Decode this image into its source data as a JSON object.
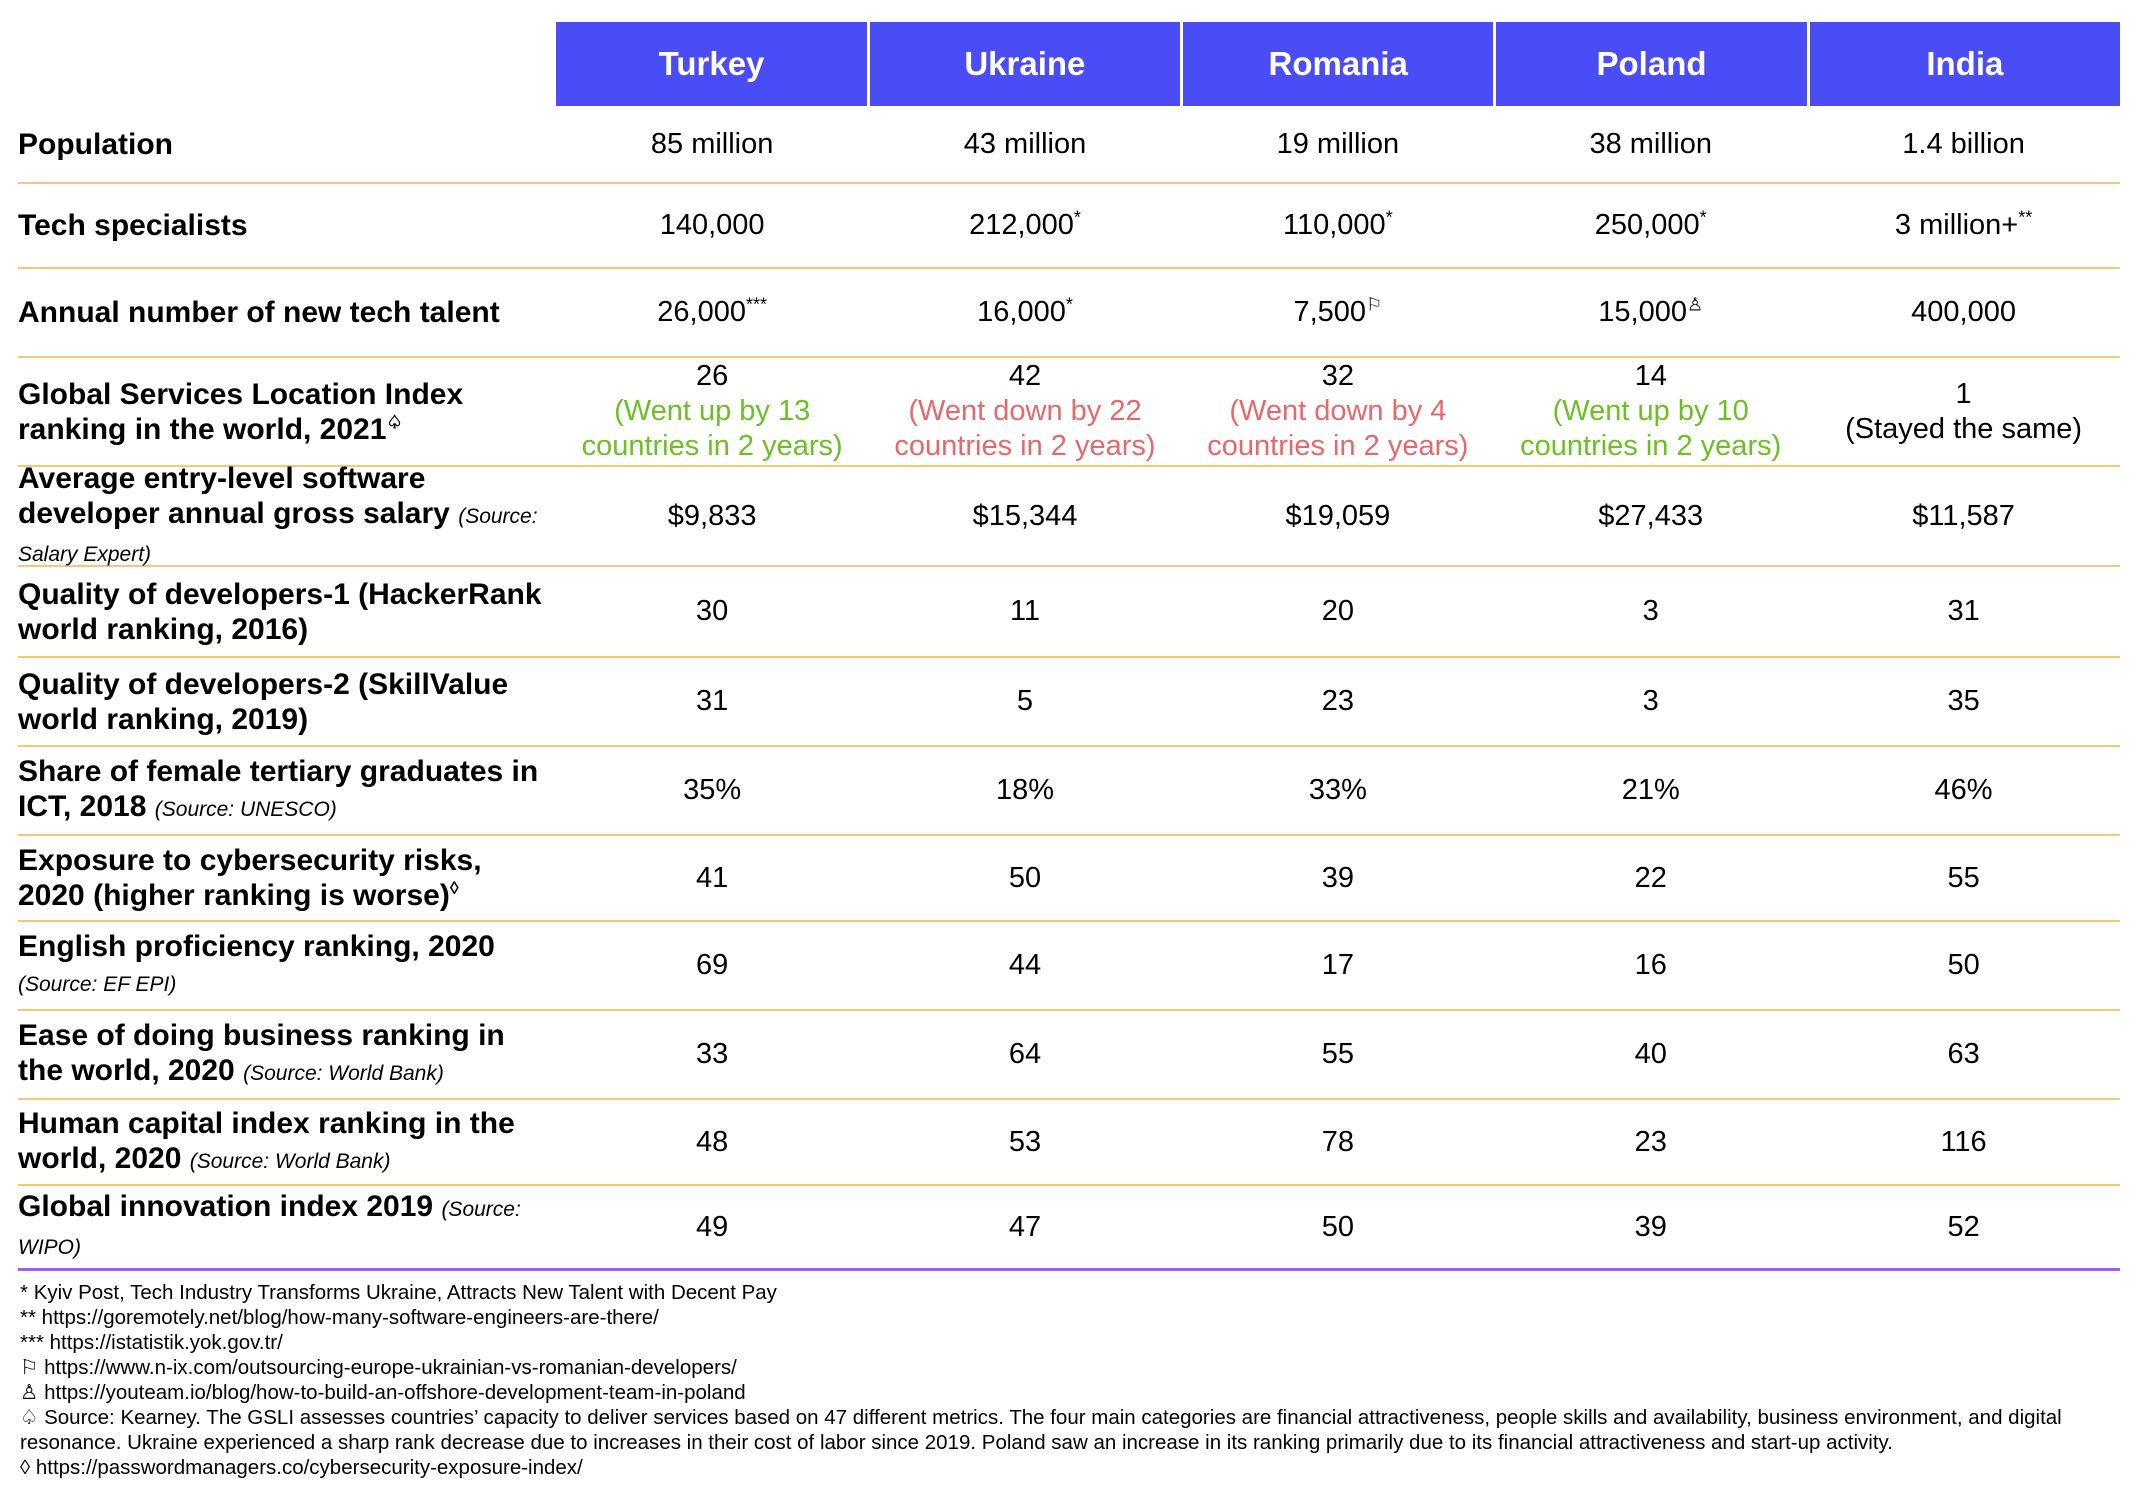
{
  "table": {
    "columns": [
      "Turkey",
      "Ukraine",
      "Romania",
      "Poland",
      "India"
    ],
    "rows": [
      {
        "label": "Population",
        "cells": [
          {
            "text": "85 million"
          },
          {
            "text": "43 million"
          },
          {
            "text": "19 million"
          },
          {
            "text": "38 million"
          },
          {
            "text": "1.4 billion"
          }
        ]
      },
      {
        "label": "Tech specialists",
        "cells": [
          {
            "text": "140,000"
          },
          {
            "text": "212,000",
            "mark": "*"
          },
          {
            "text": "110,000",
            "mark": "*"
          },
          {
            "text": "250,000",
            "mark": "*"
          },
          {
            "text": "3 million+",
            "mark": "**"
          }
        ]
      },
      {
        "label": "Annual number of new tech talent",
        "cells": [
          {
            "text": "26,000",
            "mark": "***"
          },
          {
            "text": "16,000",
            "mark": "*"
          },
          {
            "text": "7,500",
            "mark": "⚐"
          },
          {
            "text": "15,000",
            "mark": "♙"
          },
          {
            "text": "400,000"
          }
        ]
      },
      {
        "label": "Global Services Location Index ranking in the world, 2021",
        "mark": "♤",
        "cells": [
          {
            "text": "26",
            "note": "(Went up by 13 countries in 2 years)",
            "color": "#6cc024"
          },
          {
            "text": "42",
            "note": "(Went down by 22 countries in 2 years)",
            "color": "#e5686a"
          },
          {
            "text": "32",
            "note": "(Went down by 4 countries in 2 years)",
            "color": "#e5686a"
          },
          {
            "text": "14",
            "note": "(Went up by 10 countries in 2 years)",
            "color": "#6cc024"
          },
          {
            "text": "1",
            "note": "(Stayed the same)",
            "color": "#000000"
          }
        ]
      },
      {
        "label": "Average entry-level software developer annual gross salary",
        "source": "(Source: Salary Expert)",
        "cells": [
          {
            "text": "$9,833"
          },
          {
            "text": "$15,344"
          },
          {
            "text": "$19,059"
          },
          {
            "text": "$27,433"
          },
          {
            "text": "$11,587"
          }
        ]
      },
      {
        "label": "Quality of developers-1 (HackerRank world ranking, 2016)",
        "cells": [
          {
            "text": "30"
          },
          {
            "text": "11"
          },
          {
            "text": "20"
          },
          {
            "text": "3"
          },
          {
            "text": "31"
          }
        ]
      },
      {
        "label": "Quality of developers-2 (SkillValue world ranking, 2019)",
        "cells": [
          {
            "text": "31"
          },
          {
            "text": "5"
          },
          {
            "text": "23"
          },
          {
            "text": "3"
          },
          {
            "text": "35"
          }
        ]
      },
      {
        "label": "Share of female tertiary graduates in ICT, 2018",
        "source": "(Source: UNESCO)",
        "cells": [
          {
            "text": "35%"
          },
          {
            "text": "18%"
          },
          {
            "text": "33%"
          },
          {
            "text": "21%"
          },
          {
            "text": "46%"
          }
        ]
      },
      {
        "label": "Exposure to cybersecurity risks, 2020 (higher ranking is worse)",
        "mark": "◊",
        "cells": [
          {
            "text": "41"
          },
          {
            "text": "50"
          },
          {
            "text": "39"
          },
          {
            "text": "22"
          },
          {
            "text": "55"
          }
        ]
      },
      {
        "label": "English proficiency ranking, 2020",
        "source": "(Source: EF EPI)",
        "cells": [
          {
            "text": "69"
          },
          {
            "text": "44"
          },
          {
            "text": "17"
          },
          {
            "text": "16"
          },
          {
            "text": "50"
          }
        ]
      },
      {
        "label": "Ease of doing business ranking in the world, 2020",
        "source": "(Source: World Bank)",
        "cells": [
          {
            "text": "33"
          },
          {
            "text": "64"
          },
          {
            "text": "55"
          },
          {
            "text": "40"
          },
          {
            "text": "63"
          }
        ]
      },
      {
        "label": "Human capital index ranking in the world, 2020",
        "source": "(Source: World Bank)",
        "cells": [
          {
            "text": "48"
          },
          {
            "text": "53"
          },
          {
            "text": "78"
          },
          {
            "text": "23"
          },
          {
            "text": "116"
          }
        ]
      },
      {
        "label": "Global innovation index 2019",
        "source": "(Source: WIPO)",
        "cells": [
          {
            "text": "49"
          },
          {
            "text": "47"
          },
          {
            "text": "50"
          },
          {
            "text": "39"
          },
          {
            "text": "52"
          }
        ]
      }
    ]
  },
  "footnotes": [
    {
      "mark": "*",
      "text": "Kyiv Post, Tech Industry Transforms Ukraine, Attracts New Talent with Decent Pay"
    },
    {
      "mark": "**",
      "text": "https://goremotely.net/blog/how-many-software-engineers-are-there/"
    },
    {
      "mark": "***",
      "text": "https://istatistik.yok.gov.tr/"
    },
    {
      "mark": "⚐",
      "text": "https://www.n-ix.com/outsourcing-europe-ukrainian-vs-romanian-developers/"
    },
    {
      "mark": "♙",
      "text": "https://youteam.io/blog/how-to-build-an-offshore-development-team-in-poland"
    },
    {
      "mark": "♤",
      "text": "Source: Kearney. The GSLI assesses countries’ capacity to deliver services based on 47 different metrics. The four main categories are financial attractiveness, people skills and availability, business environment, and digital resonance. Ukraine experienced a sharp rank decrease due to increases in their cost of labor since 2019. Poland saw an increase in its ranking primarily due to its financial attractiveness and start-up activity."
    },
    {
      "mark": "◊",
      "text": "https://passwordmanagers.co/cybersecurity-exposure-index/"
    }
  ]
}
